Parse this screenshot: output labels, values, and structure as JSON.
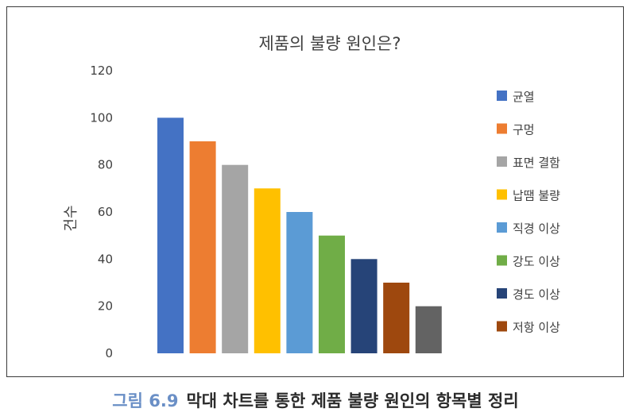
{
  "chart_data": {
    "type": "bar",
    "title": "제품의 불량 원인은?",
    "xlabel": "",
    "ylabel": "건수",
    "ylim": [
      0,
      120
    ],
    "yticks": [
      0,
      20,
      40,
      60,
      80,
      100,
      120
    ],
    "grid": false,
    "legend_position": "right",
    "categories": [
      "균열",
      "구멍",
      "표면 결함",
      "납땜 불량",
      "직경 이상",
      "강도 이상",
      "경도 이상",
      "저항 이상",
      ""
    ],
    "values": [
      100,
      90,
      80,
      70,
      60,
      50,
      40,
      30,
      20
    ],
    "colors": [
      "#4472c4",
      "#ed7d31",
      "#a5a5a5",
      "#ffc000",
      "#5b9bd5",
      "#70ad47",
      "#264478",
      "#9e480e",
      "#636363"
    ],
    "legend": [
      "균열",
      "구멍",
      "표면 결함",
      "납땜 불량",
      "직경 이상",
      "강도 이상",
      "경도 이상",
      "저항 이상"
    ]
  },
  "caption": {
    "number": "그림 6.9",
    "text": "막대 차트를 통한 제품 불량 원인의 항목별 정리"
  }
}
